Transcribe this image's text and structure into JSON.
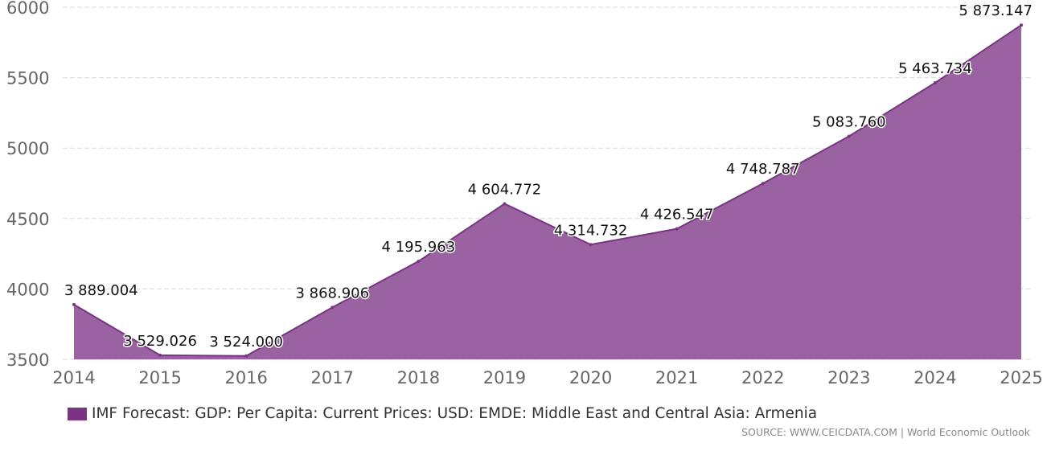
{
  "chart_data": {
    "type": "area",
    "title": "",
    "xlabel": "",
    "ylabel": "",
    "x": [
      "2014",
      "2015",
      "2016",
      "2017",
      "2018",
      "2019",
      "2020",
      "2021",
      "2022",
      "2023",
      "2024",
      "2025"
    ],
    "series": [
      {
        "name": "IMF Forecast: GDP: Per Capita: Current Prices: USD: EMDE: Middle East and Central Asia: Armenia",
        "values": [
          3889.004,
          3529.026,
          3524.0,
          3868.906,
          4195.963,
          4604.772,
          4314.732,
          4426.547,
          4748.787,
          5083.76,
          5463.734,
          5873.147
        ],
        "labels": [
          "3 889.004",
          "3 529.026",
          "3 524.000",
          "3 868.906",
          "4 195.963",
          "4 604.772",
          "4 314.732",
          "4 426.547",
          "4 748.787",
          "5 083.760",
          "5 463.734",
          "5 873.147"
        ]
      }
    ],
    "ylim": [
      3500,
      6000
    ],
    "yticks": [
      "3500",
      "4000",
      "4500",
      "5000",
      "5500",
      "6000"
    ],
    "grid": true,
    "legend_position": "bottom-left",
    "colors": {
      "fill": "#9b62a1",
      "line": "#7b3483",
      "swatch": "#7b3483",
      "grid": "#d9d9d9"
    }
  },
  "source_text": "SOURCE: WWW.CEICDATA.COM | World Economic Outlook"
}
